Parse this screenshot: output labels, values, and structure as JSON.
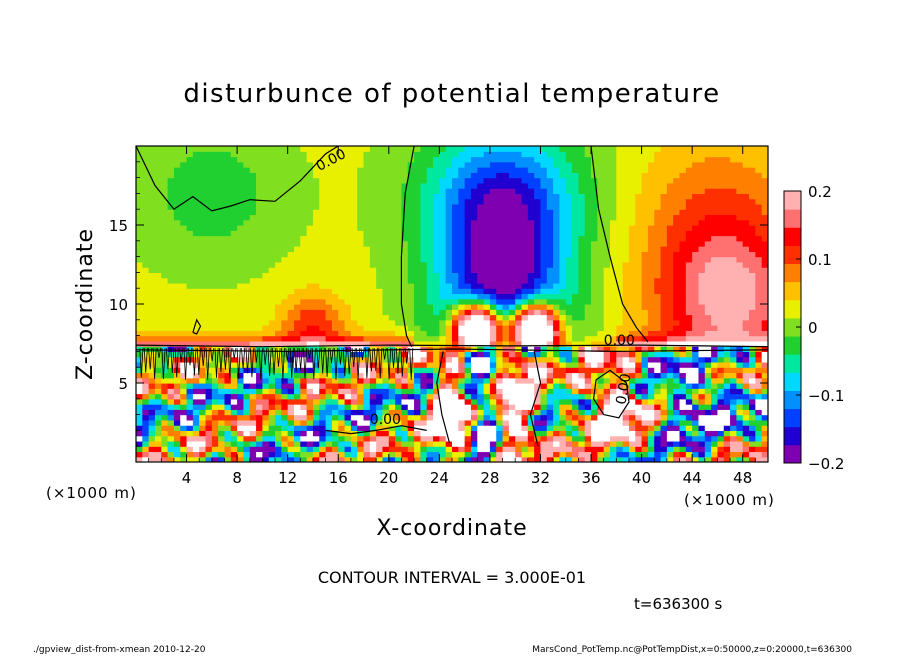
{
  "chart_data": {
    "type": "heatmap",
    "title": "disturbunce of potential temperature",
    "xlabel": "X-coordinate",
    "ylabel": "Z-coordinate",
    "x_unit": "(×1000 m)",
    "y_unit": "(×1000 m)",
    "xlim": [
      0,
      50
    ],
    "ylim": [
      0,
      20
    ],
    "x_ticks": [
      "4",
      "8",
      "12",
      "16",
      "20",
      "24",
      "28",
      "32",
      "36",
      "40",
      "44",
      "48"
    ],
    "y_ticks": [
      "5",
      "10",
      "15"
    ],
    "colorbar": {
      "range": [
        -0.2,
        0.2
      ],
      "tick_labels": [
        "0.2",
        "0.1",
        "0",
        "−0.1",
        "−0.2"
      ],
      "tick_values": [
        0.2,
        0.1,
        0,
        -0.1,
        -0.2
      ]
    },
    "contour_labels": [
      "0.00",
      "0.00",
      "0.00",
      "0.00"
    ],
    "contour_interval_text": "CONTOUR INTERVAL = 3.000E-01",
    "time_text": "t=636300 s"
  },
  "footer": {
    "left": "./gpview_dist-from-xmean   2010-12-20",
    "right": "MarsCond_PotTemp.nc@PotTempDist,x=0:50000,z=0:20000,t=636300"
  },
  "colors": {
    "palette": [
      "#7f00b0",
      "#2000d0",
      "#0040ff",
      "#0090ff",
      "#00d8ff",
      "#00e8a0",
      "#20d030",
      "#80e020",
      "#e8f000",
      "#ffc000",
      "#ff8000",
      "#ff3000",
      "#ff0000",
      "#ff7070",
      "#ffb0b0"
    ]
  }
}
